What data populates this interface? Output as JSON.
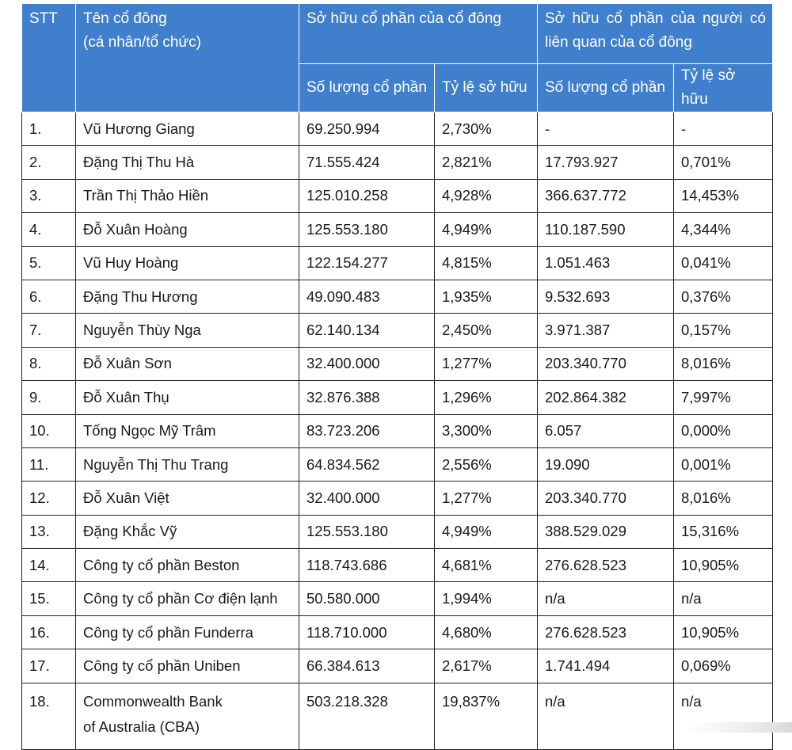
{
  "header": {
    "stt": "STT",
    "name_line1": "Tên cổ đông",
    "name_line2": "(cá nhân/tổ chức)",
    "own_group": "Sở hữu cổ phần của cổ đông",
    "related_group": "Sở hữu cổ phần của người có liên quan của cổ đông",
    "own_qty": "Số lượng cổ phần",
    "own_pct": "Tỷ lệ sở hữu",
    "rel_qty": "Số lượng cổ phần",
    "rel_pct": "Tỷ lệ sở hữu"
  },
  "rows": [
    {
      "stt": "1.",
      "name": "Vũ Hương Giang",
      "qty": "69.250.994",
      "pct": "2,730%",
      "rel_qty": "-",
      "rel_pct": "-"
    },
    {
      "stt": "2.",
      "name": "Đặng Thị Thu Hà",
      "qty": "71.555.424",
      "pct": "2,821%",
      "rel_qty": "17.793.927",
      "rel_pct": "0,701%"
    },
    {
      "stt": "3.",
      "name": "Trần Thị Thảo Hiền",
      "qty": "125.010.258",
      "pct": "4,928%",
      "rel_qty": "366.637.772",
      "rel_pct": "14,453%"
    },
    {
      "stt": "4.",
      "name": "Đỗ Xuân Hoàng",
      "qty": "125.553.180",
      "pct": "4,949%",
      "rel_qty": "110.187.590",
      "rel_pct": "4,344%"
    },
    {
      "stt": "5.",
      "name": "Vũ Huy Hoàng",
      "qty": "122.154.277",
      "pct": "4,815%",
      "rel_qty": "1.051.463",
      "rel_pct": "0,041%"
    },
    {
      "stt": "6.",
      "name": "Đặng Thu Hương",
      "qty": "49.090.483",
      "pct": "1,935%",
      "rel_qty": "9.532.693",
      "rel_pct": "0,376%"
    },
    {
      "stt": "7.",
      "name": "Nguyễn Thùy Nga",
      "qty": "62.140.134",
      "pct": "2,450%",
      "rel_qty": "3.971.387",
      "rel_pct": "0,157%"
    },
    {
      "stt": "8.",
      "name": "Đỗ Xuân Sơn",
      "qty": "32.400.000",
      "pct": "1,277%",
      "rel_qty": "203.340.770",
      "rel_pct": "8,016%"
    },
    {
      "stt": "9.",
      "name": "Đỗ Xuân Thụ",
      "qty": "32.876.388",
      "pct": "1,296%",
      "rel_qty": "202.864.382",
      "rel_pct": "7,997%"
    },
    {
      "stt": "10.",
      "name": "Tống Ngọc Mỹ Trâm",
      "qty": "83.723.206",
      "pct": "3,300%",
      "rel_qty": "6.057",
      "rel_pct": "0,000%"
    },
    {
      "stt": "11.",
      "name": "Nguyễn Thị Thu Trang",
      "qty": "64.834.562",
      "pct": "2,556%",
      "rel_qty": "19.090",
      "rel_pct": "0,001%"
    },
    {
      "stt": "12.",
      "name": "Đỗ Xuân Việt",
      "qty": "32.400.000",
      "pct": "1,277%",
      "rel_qty": "203.340.770",
      "rel_pct": "8,016%"
    },
    {
      "stt": "13.",
      "name": "Đặng Khắc Vỹ",
      "qty": "125.553.180",
      "pct": "4,949%",
      "rel_qty": "388.529.029",
      "rel_pct": "15,316%"
    },
    {
      "stt": "14.",
      "name": "Công ty cổ phần Beston",
      "qty": "118.743.686",
      "pct": "4,681%",
      "rel_qty": "276.628.523",
      "rel_pct": "10,905%"
    },
    {
      "stt": "15.",
      "name": "Công ty cổ phần Cơ điện lạnh",
      "qty": "50.580.000",
      "pct": "1,994%",
      "rel_qty": "n/a",
      "rel_pct": "n/a"
    },
    {
      "stt": "16.",
      "name": "Công ty cổ phần Funderra",
      "qty": "118.710.000",
      "pct": "4,680%",
      "rel_qty": "276.628.523",
      "rel_pct": "10,905%"
    },
    {
      "stt": "17.",
      "name": "Công ty cổ phần Uniben",
      "qty": "66.384.613",
      "pct": "2,617%",
      "rel_qty": "1.741.494",
      "rel_pct": "0,069%"
    }
  ],
  "last_row": {
    "stt": "18.",
    "name_line1": "Commonwealth Bank",
    "name_line2": "of Australia (CBA)",
    "qty": "503.218.328",
    "pct": "19,837%",
    "rel_qty": "n/a",
    "rel_pct": "n/a"
  },
  "colors": {
    "header_bg": "#3f7fcb",
    "header_text": "#ffffff",
    "border": "#222222"
  }
}
